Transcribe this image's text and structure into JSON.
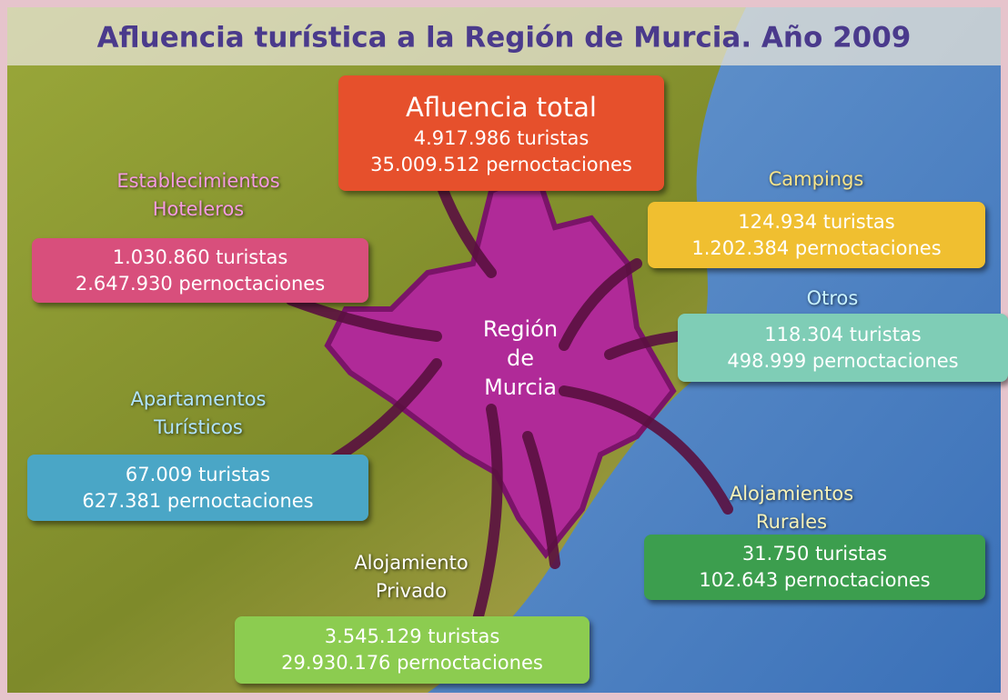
{
  "title": "Afluencia turística a la Región de Murcia. Año 2009",
  "center": {
    "lines": [
      "Región",
      "de",
      "Murcia"
    ]
  },
  "boxes": [
    {
      "label_lines": [
        "Afluencia total"
      ],
      "lines": [
        "4.917.986 turistas",
        "35.009.512 pernoctaciones"
      ]
    },
    {
      "label_lines": [
        "Establecimientos",
        "Hoteleros"
      ],
      "lines": [
        "1.030.860 turistas",
        "2.647.930 pernoctaciones"
      ]
    },
    {
      "label_lines": [
        "Campings"
      ],
      "lines": [
        "124.934 turistas",
        "1.202.384 pernoctaciones"
      ]
    },
    {
      "label_lines": [
        "Otros"
      ],
      "lines": [
        "118.304 turistas",
        "498.999 pernoctaciones"
      ]
    },
    {
      "label_lines": [
        "Apartamentos",
        "Turísticos"
      ],
      "lines": [
        "67.009 turistas",
        "627.381 pernoctaciones"
      ]
    },
    {
      "label_lines": [
        "Alojamientos",
        "Rurales"
      ],
      "lines": [
        "31.750 turistas",
        "102.643 pernoctaciones"
      ]
    },
    {
      "label_lines": [
        "Alojamiento",
        "Privado"
      ],
      "lines": [
        "3.545.129 turistas",
        "29.930.176 pernoctaciones"
      ]
    }
  ]
}
